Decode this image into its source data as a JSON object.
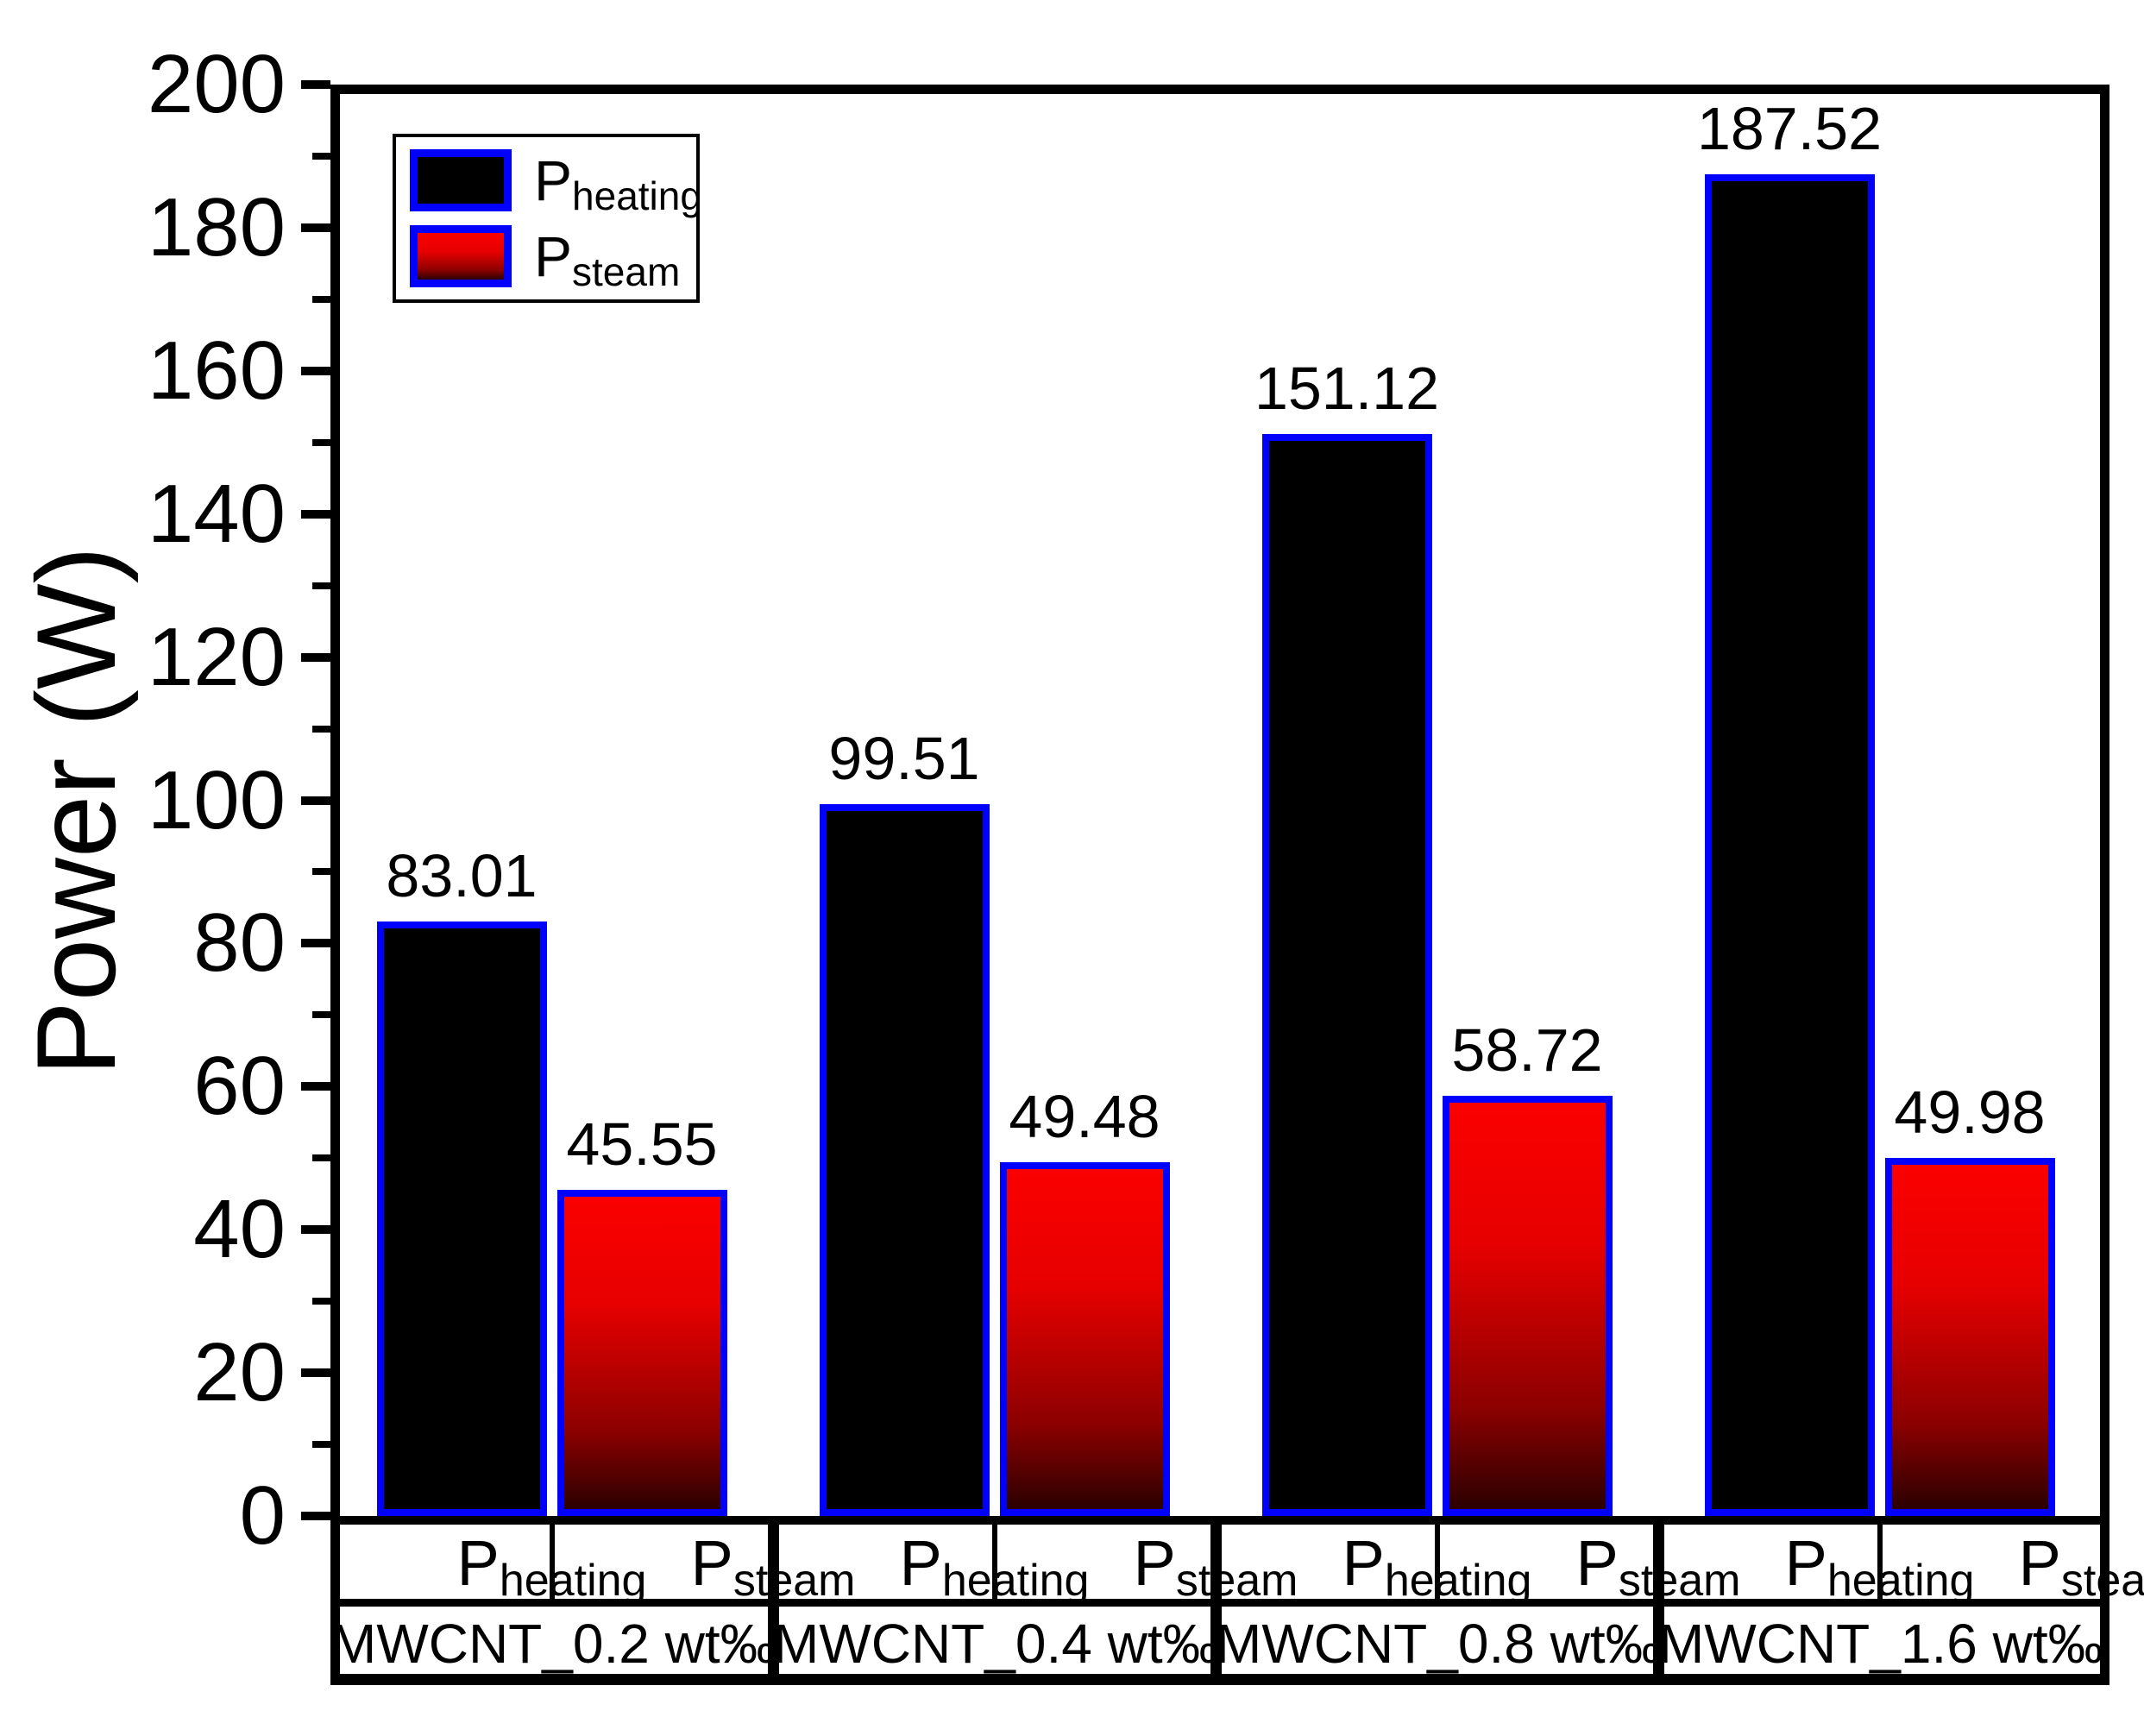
{
  "chart_data": {
    "type": "bar",
    "title": "",
    "ylabel": "Power (W)",
    "ylim": [
      0,
      200
    ],
    "ytick_step": 20,
    "yminor_step": 10,
    "ytick_labels": [
      "0",
      "20",
      "40",
      "60",
      "80",
      "100",
      "120",
      "140",
      "160",
      "180",
      "200"
    ],
    "grid": false,
    "legend_position": "top-left",
    "bar_border_color": "#0000ff",
    "axis_color": "#000000",
    "categories": [
      "MWCNT_0.2 wt‰",
      "MWCNT_0.4 wt‰",
      "MWCNT_0.8 wt‰",
      "MWCNT_1.6 wt‰"
    ],
    "series": [
      {
        "name_main": "P",
        "name_sub": "heating",
        "fill": "#000000",
        "values": [
          83.01,
          99.51,
          151.12,
          187.52
        ]
      },
      {
        "name_main": "P",
        "name_sub": "steam",
        "fill_top": "#fb0000",
        "fill_bottom": "#2b0000",
        "values": [
          45.55,
          49.48,
          58.72,
          49.98
        ]
      }
    ]
  },
  "axis": {
    "ylabel": "Power (W)"
  },
  "legend": {
    "items": [
      {
        "main": "P",
        "sub": "heating"
      },
      {
        "main": "P",
        "sub": "steam"
      }
    ]
  }
}
